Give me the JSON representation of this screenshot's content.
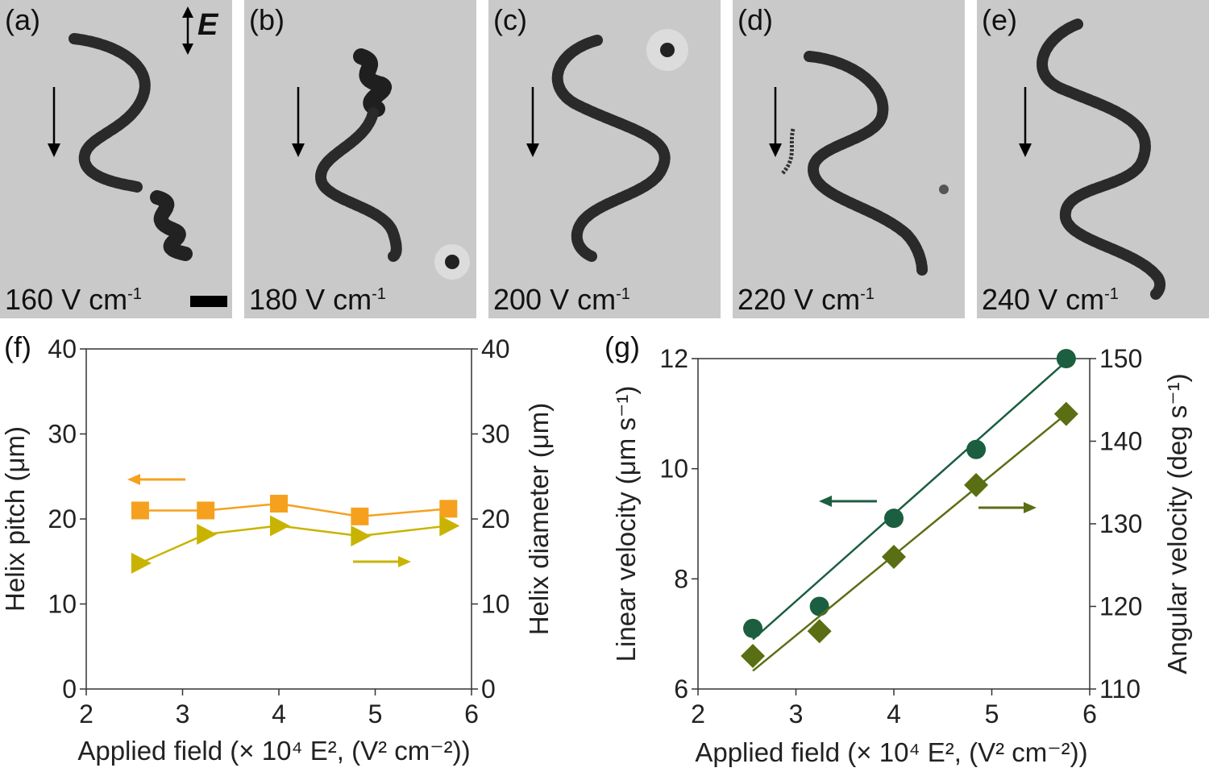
{
  "micrographs": {
    "field_annotation": "E",
    "panels": [
      {
        "label": "(a)",
        "field_value": "160 V cm",
        "field_exp": "-1"
      },
      {
        "label": "(b)",
        "field_value": "180 V cm",
        "field_exp": "-1"
      },
      {
        "label": "(c)",
        "field_value": "200 V cm",
        "field_exp": "-1"
      },
      {
        "label": "(d)",
        "field_value": "220 V cm",
        "field_exp": "-1"
      },
      {
        "label": "(e)",
        "field_value": "240 V cm",
        "field_exp": "-1"
      }
    ]
  },
  "chart_data": [
    {
      "panel_label": "(f)",
      "type": "line",
      "xlabel": "Applied field (× 10⁴ E², (V² cm⁻²))",
      "ylabel": "Helix pitch (μm)",
      "ylabel_right": "Helix diameter (μm)",
      "xlim": [
        2,
        6
      ],
      "ylim": [
        0,
        40
      ],
      "ylim_right": [
        0,
        40
      ],
      "x_ticks": [
        "2",
        "3",
        "4",
        "5",
        "6"
      ],
      "y_ticks": [
        "0",
        "10",
        "20",
        "30",
        "40"
      ],
      "y_ticks_right": [
        "0",
        "10",
        "20",
        "30",
        "40"
      ],
      "x": [
        2.56,
        3.24,
        4.0,
        4.84,
        5.76
      ],
      "series": [
        {
          "axis": "left",
          "marker": "square",
          "color": "#f5a11f",
          "values": [
            21.0,
            21.0,
            21.8,
            20.3,
            21.2
          ]
        },
        {
          "axis": "right",
          "marker": "triangle-right",
          "color": "#c8b400",
          "values": [
            14.8,
            18.2,
            19.2,
            18.0,
            19.2
          ]
        }
      ]
    },
    {
      "panel_label": "(g)",
      "type": "scatter",
      "xlabel": "Applied field (× 10⁴ E², (V² cm⁻²))",
      "ylabel": "Linear velocity (μm s⁻¹)",
      "ylabel_right": "Angular velocity (deg s⁻¹)",
      "xlim": [
        2,
        6
      ],
      "ylim": [
        6,
        12
      ],
      "ylim_right": [
        110,
        150
      ],
      "x_ticks": [
        "2",
        "3",
        "4",
        "5",
        "6"
      ],
      "y_ticks": [
        "6",
        "8",
        "10",
        "12"
      ],
      "y_ticks_right": [
        "110",
        "120",
        "130",
        "140",
        "150"
      ],
      "x": [
        2.56,
        3.24,
        4.0,
        4.84,
        5.76
      ],
      "series": [
        {
          "axis": "left",
          "marker": "circle",
          "color": "#1b5e40",
          "values": [
            7.1,
            7.5,
            9.1,
            10.35,
            12.0
          ],
          "fit": [
            [
              2.56,
              6.9
            ],
            [
              5.76,
              11.95
            ]
          ]
        },
        {
          "axis": "right",
          "marker": "diamond",
          "color": "#5a6e14",
          "values": [
            114.0,
            117.0,
            126.0,
            134.7,
            143.3
          ],
          "fit": [
            [
              2.56,
              112.2
            ],
            [
              5.76,
              143.3
            ]
          ]
        }
      ]
    }
  ]
}
